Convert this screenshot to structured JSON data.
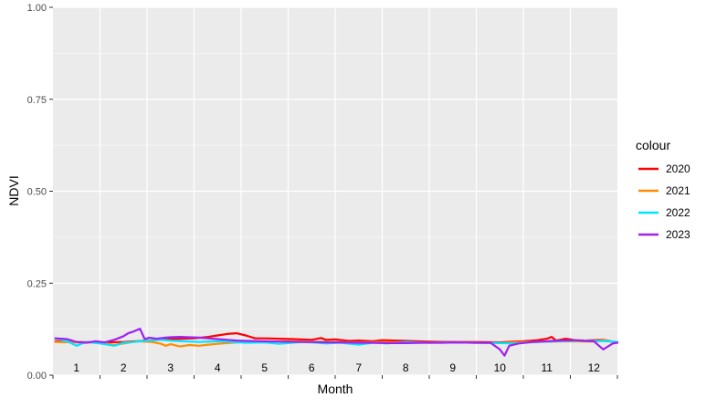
{
  "chart_data": {
    "type": "line",
    "title": "",
    "xlabel": "Month",
    "ylabel": "NDVI",
    "ylim": [
      0,
      1
    ],
    "xlim": [
      0.5,
      12.5
    ],
    "yticks": [
      0.0,
      0.25,
      0.5,
      0.75,
      1.0
    ],
    "ytick_labels": [
      "0.00",
      "0.25",
      "0.50",
      "0.75",
      "1.00"
    ],
    "month_labels": [
      "1",
      "2",
      "3",
      "4",
      "5",
      "6",
      "7",
      "8",
      "9",
      "10",
      "11",
      "12"
    ],
    "grid": true,
    "legend": {
      "title": "colour",
      "position": "right"
    },
    "series": [
      {
        "name": "2020",
        "color": "#FF0000",
        "x": [
          0.55,
          1.0,
          1.5,
          2.0,
          2.5,
          3.0,
          3.5,
          3.8,
          4.0,
          4.2,
          4.4,
          4.6,
          4.8,
          5.0,
          5.3,
          5.6,
          6.0,
          6.2,
          6.3,
          6.5,
          6.8,
          7.0,
          7.3,
          7.5,
          8.0,
          8.5,
          9.0,
          9.5,
          10.0,
          10.5,
          10.8,
          11.0,
          11.1,
          11.2,
          11.4,
          11.6,
          11.8,
          12.0,
          12.2,
          12.4,
          12.5
        ],
        "y": [
          0.092,
          0.09,
          0.089,
          0.09,
          0.094,
          0.098,
          0.1,
          0.104,
          0.108,
          0.112,
          0.114,
          0.108,
          0.1,
          0.1,
          0.099,
          0.098,
          0.096,
          0.101,
          0.096,
          0.097,
          0.093,
          0.094,
          0.092,
          0.095,
          0.093,
          0.091,
          0.09,
          0.09,
          0.089,
          0.092,
          0.095,
          0.099,
          0.104,
          0.094,
          0.099,
          0.095,
          0.094,
          0.095,
          0.096,
          0.091,
          0.09
        ]
      },
      {
        "name": "2021",
        "color": "#FF8C00",
        "x": [
          0.55,
          1.0,
          1.5,
          1.8,
          2.0,
          2.3,
          2.6,
          2.8,
          2.9,
          3.0,
          3.2,
          3.4,
          3.6,
          3.8,
          4.0,
          4.3,
          4.6,
          5.0,
          5.5,
          6.0,
          6.5,
          7.0,
          7.5,
          8.0,
          8.5,
          9.0,
          9.5,
          10.0,
          10.5,
          11.0,
          11.5,
          12.0,
          12.2,
          12.5
        ],
        "y": [
          0.09,
          0.089,
          0.088,
          0.082,
          0.086,
          0.092,
          0.09,
          0.085,
          0.08,
          0.084,
          0.078,
          0.082,
          0.08,
          0.083,
          0.085,
          0.088,
          0.09,
          0.091,
          0.092,
          0.091,
          0.09,
          0.089,
          0.09,
          0.089,
          0.088,
          0.089,
          0.088,
          0.087,
          0.09,
          0.091,
          0.092,
          0.091,
          0.095,
          0.088
        ]
      },
      {
        "name": "2022",
        "color": "#00E5FF",
        "x": [
          0.55,
          0.8,
          1.0,
          1.2,
          1.5,
          1.8,
          2.0,
          2.2,
          2.5,
          2.8,
          3.0,
          3.3,
          3.6,
          4.0,
          4.3,
          4.6,
          5.0,
          5.3,
          5.5,
          5.8,
          6.0,
          6.3,
          6.6,
          7.0,
          7.3,
          7.6,
          8.0,
          8.5,
          9.0,
          9.5,
          10.0,
          10.3,
          10.6,
          11.0,
          11.4,
          11.8,
          12.0,
          12.3,
          12.5
        ],
        "y": [
          0.1,
          0.092,
          0.08,
          0.09,
          0.086,
          0.08,
          0.088,
          0.09,
          0.094,
          0.096,
          0.094,
          0.092,
          0.09,
          0.092,
          0.09,
          0.088,
          0.089,
          0.085,
          0.087,
          0.09,
          0.089,
          0.086,
          0.088,
          0.083,
          0.088,
          0.086,
          0.09,
          0.088,
          0.089,
          0.088,
          0.087,
          0.086,
          0.089,
          0.091,
          0.093,
          0.094,
          0.093,
          0.092,
          0.09
        ]
      },
      {
        "name": "2023",
        "color": "#A020F0",
        "x": [
          0.55,
          0.8,
          1.0,
          1.2,
          1.4,
          1.6,
          1.8,
          2.0,
          2.1,
          2.2,
          2.35,
          2.45,
          2.55,
          2.7,
          2.9,
          3.0,
          3.2,
          3.4,
          3.6,
          3.8,
          4.0,
          4.2,
          4.4,
          4.6,
          5.0,
          5.4,
          5.8,
          6.0,
          6.3,
          6.6,
          7.0,
          7.3,
          7.6,
          8.0,
          8.4,
          8.8,
          9.0,
          9.4,
          9.8,
          10.0,
          10.1,
          10.2,
          10.4,
          10.7,
          11.0,
          11.3,
          11.6,
          11.8,
          12.0,
          12.1,
          12.2,
          12.4,
          12.5
        ],
        "y": [
          0.1,
          0.098,
          0.09,
          0.088,
          0.092,
          0.089,
          0.096,
          0.106,
          0.114,
          0.118,
          0.126,
          0.098,
          0.102,
          0.099,
          0.102,
          0.103,
          0.104,
          0.103,
          0.102,
          0.1,
          0.098,
          0.096,
          0.094,
          0.093,
          0.092,
          0.091,
          0.09,
          0.09,
          0.089,
          0.089,
          0.088,
          0.088,
          0.087,
          0.087,
          0.088,
          0.088,
          0.089,
          0.088,
          0.088,
          0.07,
          0.053,
          0.08,
          0.086,
          0.09,
          0.092,
          0.094,
          0.095,
          0.093,
          0.092,
          0.081,
          0.07,
          0.086,
          0.088
        ]
      }
    ]
  }
}
